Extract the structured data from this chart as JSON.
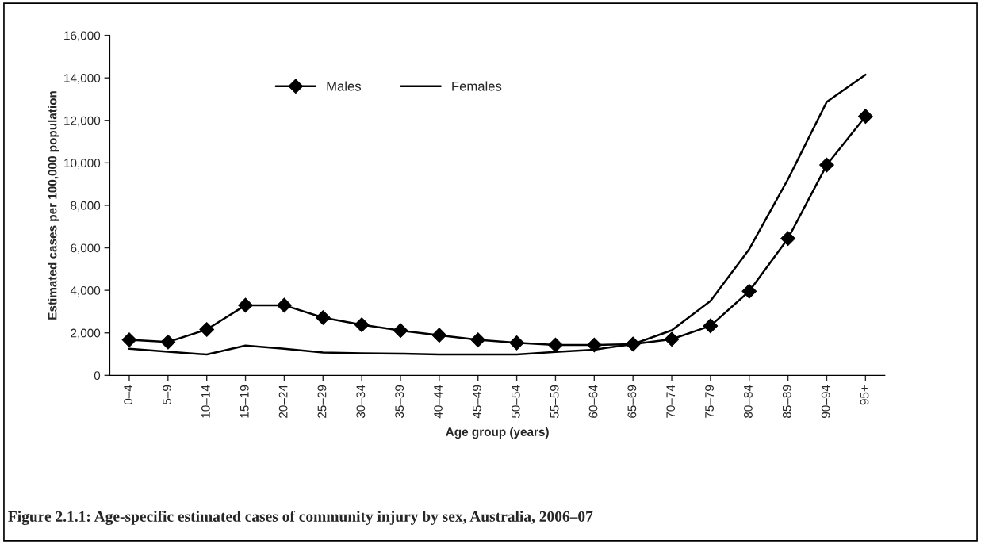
{
  "chart_data": {
    "type": "line",
    "xlabel": "Age group (years)",
    "ylabel": "Estimated cases per 100,000 population",
    "categories": [
      "0–4",
      "5–9",
      "10–14",
      "15–19",
      "20–24",
      "25–29",
      "30–34",
      "35–39",
      "40–44",
      "45–49",
      "50–54",
      "55–59",
      "60–64",
      "65–69",
      "70–74",
      "75–79",
      "80–84",
      "85–89",
      "90–94",
      "95+"
    ],
    "series": [
      {
        "name": "Males",
        "color": "#000000",
        "marker": "diamond",
        "values": [
          1670,
          1570,
          2160,
          3300,
          3300,
          2720,
          2380,
          2110,
          1890,
          1670,
          1530,
          1430,
          1430,
          1470,
          1700,
          2330,
          3960,
          6440,
          9900,
          12190
        ]
      },
      {
        "name": "Females",
        "color": "#000000",
        "values": [
          1250,
          1110,
          980,
          1400,
          1250,
          1080,
          1040,
          1020,
          980,
          980,
          980,
          1100,
          1210,
          1470,
          2120,
          3500,
          5940,
          9230,
          12870,
          14150
        ]
      }
    ],
    "ylim": [
      0,
      16000
    ],
    "yticks": [
      {
        "value": 0,
        "label": "0"
      },
      {
        "value": 2000,
        "label": "2,000"
      },
      {
        "value": 4000,
        "label": "4,000"
      },
      {
        "value": 6000,
        "label": "6,000"
      },
      {
        "value": 8000,
        "label": "8,000"
      },
      {
        "value": 10000,
        "label": "10,000"
      },
      {
        "value": 12000,
        "label": "12,000"
      },
      {
        "value": 14000,
        "label": "14,000"
      },
      {
        "value": 16000,
        "label": "16,000"
      }
    ],
    "legend": "top",
    "grid": false,
    "annotations": [
      "Figure 2.1.1: Age-specific estimated cases of community injury by sex, Australia, 2006–07"
    ]
  }
}
